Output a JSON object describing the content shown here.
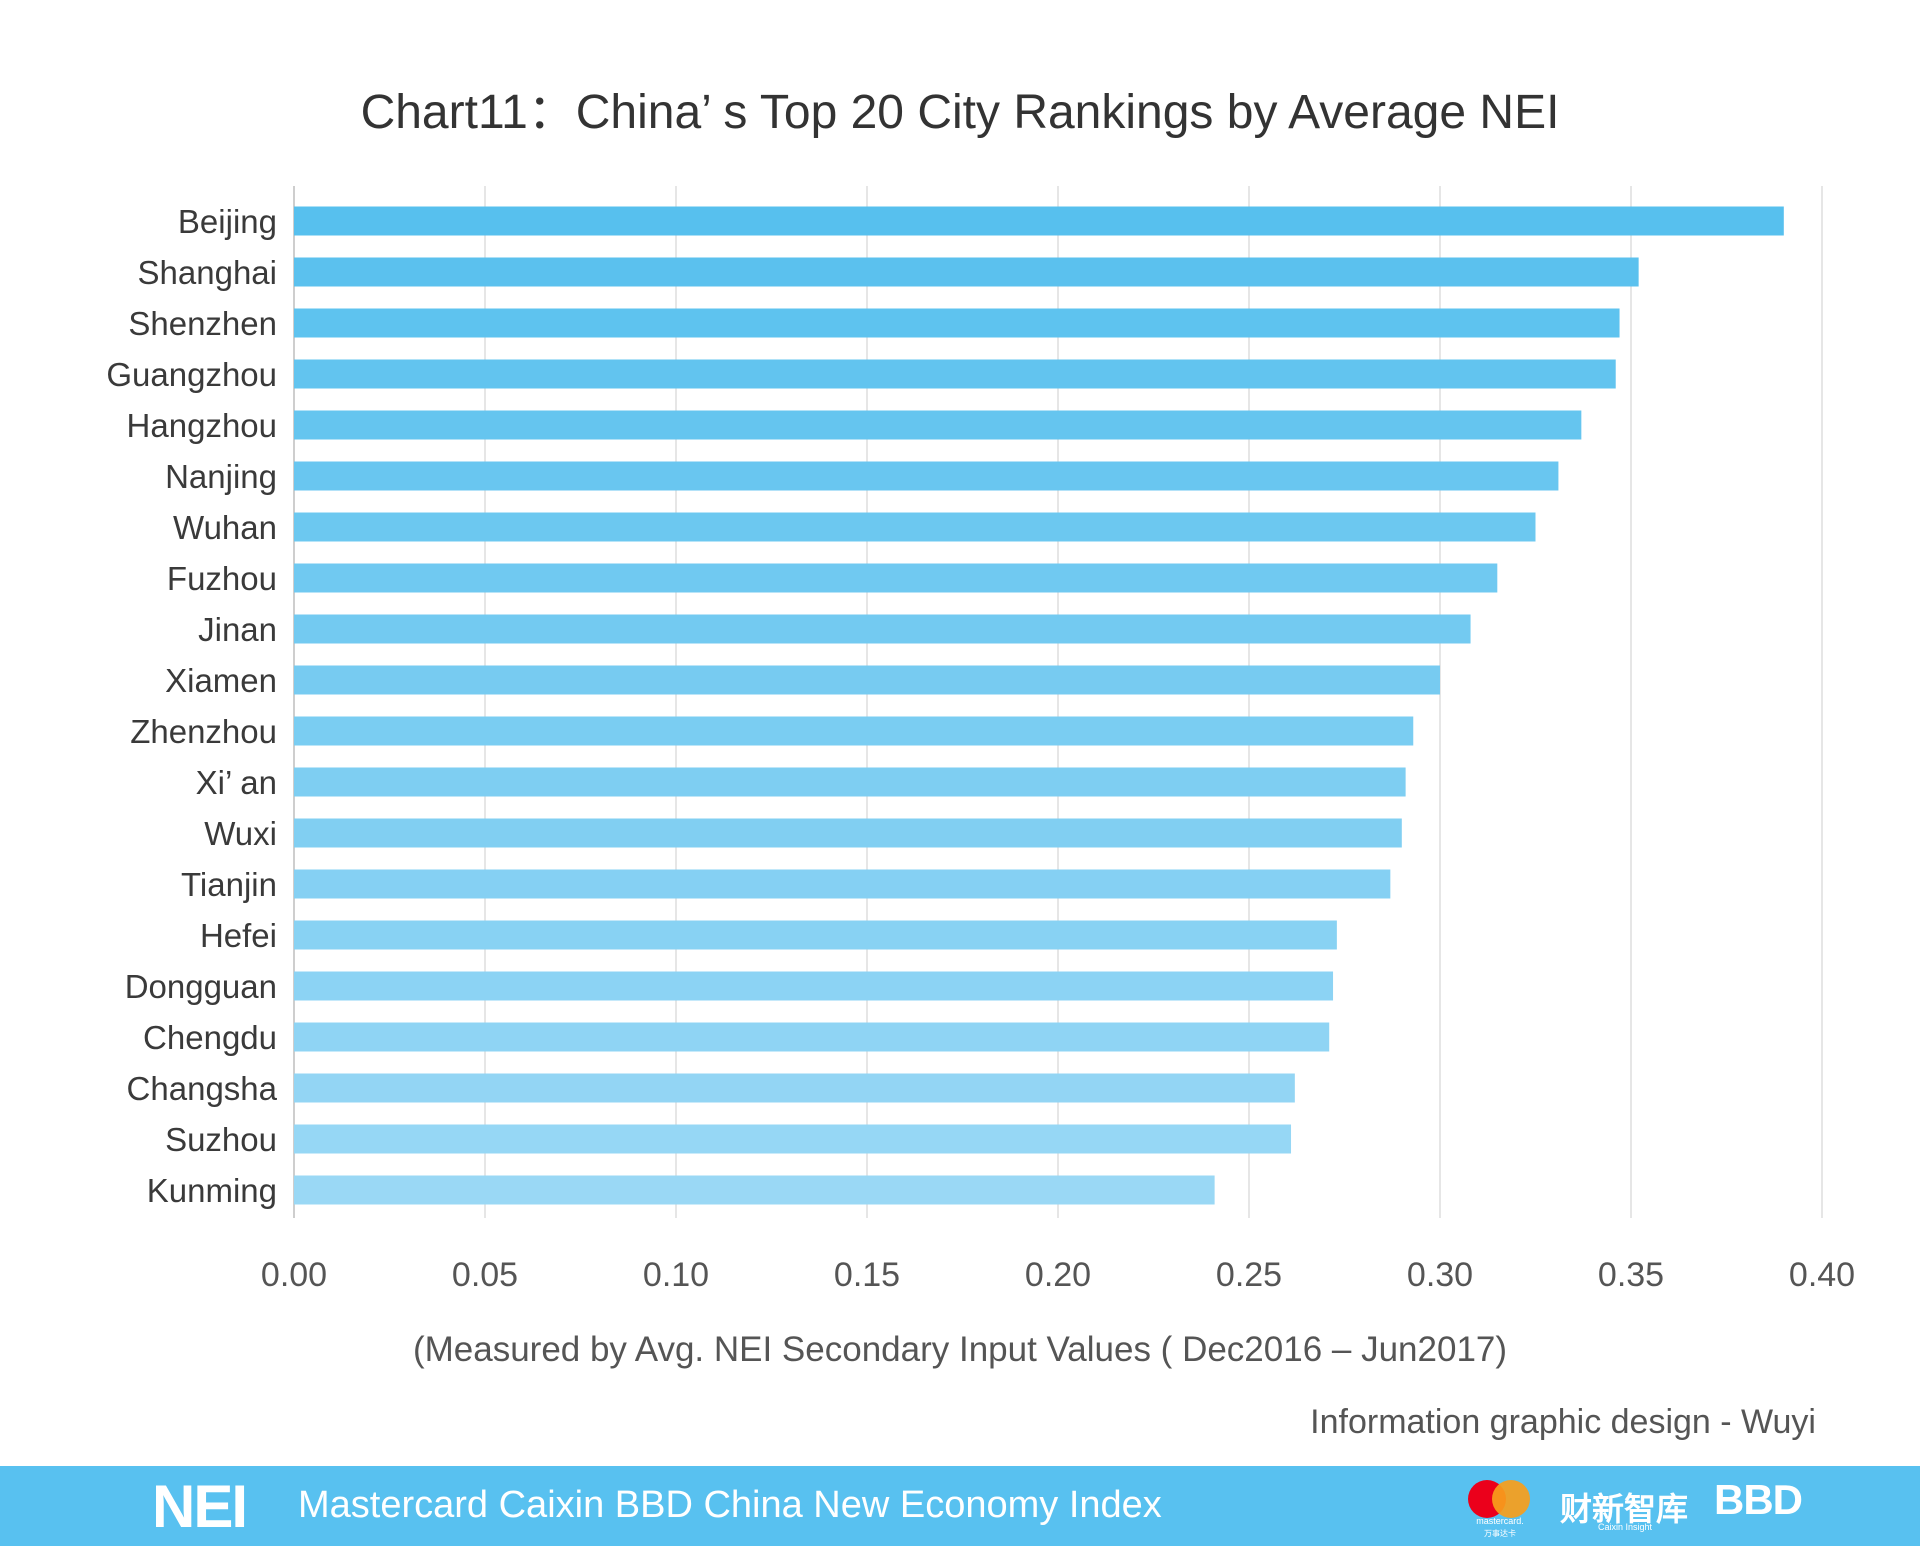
{
  "chart_data": {
    "type": "bar",
    "orientation": "horizontal",
    "title": "Chart11：China’ s Top 20 City Rankings by Average NEI",
    "categories": [
      "Beijing",
      "Shanghai",
      "Shenzhen",
      "Guangzhou",
      "Hangzhou",
      "Nanjing",
      "Wuhan",
      "Fuzhou",
      "Jinan",
      "Xiamen",
      "Zhenzhou",
      "Xi’ an",
      "Wuxi",
      "Tianjin",
      "Hefei",
      "Dongguan",
      "Chengdu",
      "Changsha",
      "Suzhou",
      "Kunming"
    ],
    "values": [
      0.39,
      0.352,
      0.347,
      0.346,
      0.337,
      0.331,
      0.325,
      0.315,
      0.308,
      0.3,
      0.293,
      0.291,
      0.29,
      0.287,
      0.273,
      0.272,
      0.271,
      0.262,
      0.261,
      0.241
    ],
    "xlim": [
      0,
      0.4
    ],
    "xticks": [
      "0.00",
      "0.05",
      "0.10",
      "0.15",
      "0.20",
      "0.25",
      "0.30",
      "0.35",
      "0.40"
    ],
    "xlabel": "(Measured by Avg. NEI Secondary Input Values ( Dec2016 – Jun2017)",
    "ylabel": "",
    "grid": "vertical",
    "bar_color_top": "#57c0ee",
    "bar_color_bottom": "#9ad8f5"
  },
  "credit": "Information graphic design - Wuyi",
  "footer": {
    "logo": "NEI",
    "text": "Mastercard Caixin BBD China New Economy Index",
    "mastercard_caption": "mastercard.",
    "mastercard_sub": "万事达卡",
    "caixin_logo": "财新智库",
    "caixin_sub": "Caixin Insight",
    "bbd_logo": "BBD",
    "background": "#58c1f0"
  }
}
